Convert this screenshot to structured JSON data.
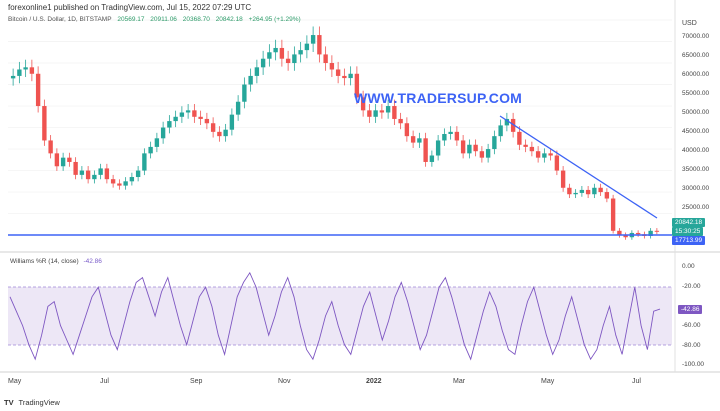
{
  "header": {
    "publisher_line": "forexonline1 published on TradingView.com, Jul 15, 2022 07:29 UTC",
    "symbol": "Bitcoin / U.S. Dollar, 1D, BITSTAMP",
    "open": "20569.17",
    "high": "20911.06",
    "low": "20368.70",
    "close": "20842.18",
    "change": "+264.95 (+1.29%)"
  },
  "watermark": "WWW.TRADERSUP.COM",
  "currency": "USD",
  "price_axis": [
    "70000.00",
    "65000.00",
    "60000.00",
    "55000.00",
    "50000.00",
    "45000.00",
    "40000.00",
    "35000.00",
    "30000.00",
    "25000.00"
  ],
  "tags": {
    "last_price": "20842.18",
    "countdown": "15:30:25",
    "support_level": "17713.99",
    "wr_value": "-42.86"
  },
  "indicator": {
    "label": "Williams %R (14, close)",
    "value": "-42.86",
    "axis": [
      "0.00",
      "-20.00",
      "-60.00",
      "-80.00",
      "-100.00"
    ]
  },
  "time_axis": [
    "May",
    "Jul",
    "Sep",
    "Nov",
    "2022",
    "Mar",
    "May",
    "Jul"
  ],
  "footer": {
    "logo": "TV",
    "brand": "TradingView"
  },
  "colors": {
    "up": "#26a69a",
    "down": "#ef5350",
    "trendline": "#3d63f5",
    "wr_line": "#7e57c2",
    "wr_band": "#ede7f6"
  },
  "chart_data": {
    "type": "candlestick",
    "symbol": "BTC/USD",
    "price_range": [
      17000,
      70000
    ],
    "closes_approx": [
      57000,
      58500,
      59000,
      57500,
      50000,
      42000,
      39000,
      36000,
      38000,
      37000,
      34000,
      35000,
      33000,
      34000,
      35500,
      33000,
      32000,
      31500,
      32500,
      33500,
      35000,
      39000,
      40500,
      42500,
      45000,
      46500,
      47500,
      48500,
      49000,
      47500,
      47000,
      46000,
      44000,
      43000,
      44500,
      48000,
      51000,
      55000,
      57000,
      59000,
      61000,
      62500,
      63500,
      61000,
      60000,
      62000,
      63000,
      64500,
      66500,
      62000,
      60000,
      58500,
      57000,
      56500,
      57500,
      52000,
      49000,
      47500,
      49000,
      48500,
      50000,
      47000,
      46000,
      43000,
      41500,
      42500,
      37000,
      38500,
      42000,
      43500,
      44000,
      42000,
      39000,
      41000,
      39500,
      38000,
      40000,
      43000,
      45500,
      47000,
      44000,
      41000,
      40500,
      39500,
      38000,
      39000,
      38500,
      35000,
      31000,
      29500,
      29800,
      30500,
      29500,
      31000,
      30000,
      28500,
      21000,
      20000,
      19500,
      20500,
      20200,
      19800,
      21000,
      20842
    ],
    "support_level": 17713.99,
    "trendline": {
      "from": [
        "2022-03-28",
        48000
      ],
      "to": [
        "2022-07-15",
        23000
      ]
    },
    "indicator": {
      "name": "Williams %R (14, close)",
      "range": [
        -100,
        0
      ],
      "levels": [
        -20,
        -80
      ],
      "values_approx": [
        -30,
        -45,
        -60,
        -80,
        -95,
        -70,
        -40,
        -35,
        -60,
        -75,
        -90,
        -70,
        -50,
        -30,
        -20,
        -45,
        -70,
        -85,
        -60,
        -35,
        -15,
        -10,
        -30,
        -50,
        -25,
        -10,
        -35,
        -60,
        -80,
        -55,
        -30,
        -20,
        -40,
        -70,
        -90,
        -60,
        -30,
        -15,
        -5,
        -20,
        -45,
        -70,
        -50,
        -25,
        -10,
        -30,
        -60,
        -85,
        -95,
        -75,
        -50,
        -35,
        -60,
        -80,
        -90,
        -65,
        -40,
        -25,
        -50,
        -75,
        -55,
        -30,
        -15,
        -35,
        -60,
        -85,
        -70,
        -45,
        -20,
        -10,
        -30,
        -55,
        -80,
        -95,
        -70,
        -45,
        -25,
        -40,
        -65,
        -85,
        -90,
        -60,
        -35,
        -20,
        -45,
        -70,
        -90,
        -75,
        -50,
        -30,
        -55,
        -80,
        -95,
        -85,
        -60,
        -40,
        -70,
        -90,
        -55,
        -20,
        -60,
        -85,
        -45,
        -42.86
      ]
    }
  }
}
